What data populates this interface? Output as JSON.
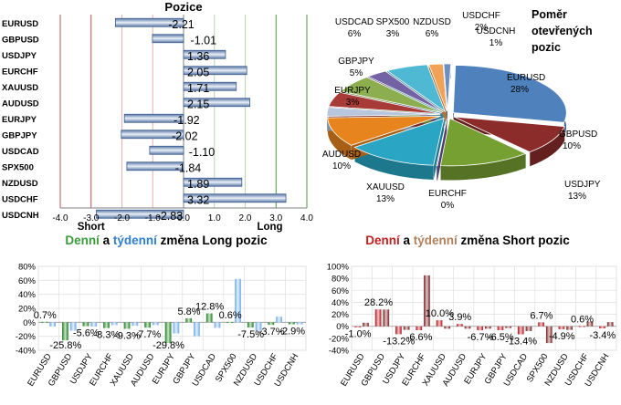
{
  "chart_data": [
    {
      "type": "bar",
      "orientation": "horizontal",
      "title": "Pozice",
      "categories": [
        "EURUSD",
        "GBPUSD",
        "USDJPY",
        "EURCHF",
        "XAUUSD",
        "AUDUSD",
        "EURJPY",
        "GBPJPY",
        "USDCAD",
        "SPX500",
        "NZDUSD",
        "USDCHF",
        "USDCNH"
      ],
      "values": [
        -2.21,
        -1.01,
        1.36,
        2.05,
        1.71,
        2.15,
        -1.92,
        -2.02,
        -1.1,
        -1.84,
        1.89,
        3.32,
        -2.83
      ],
      "value_labels": [
        "-2.21",
        "-1.01",
        "1.36",
        "2.05",
        "1.71",
        "2.15",
        "-1.92",
        "-2.02",
        "-1.10",
        "-1.84",
        "1.89",
        "3.32",
        "-2.83"
      ],
      "xlim": [
        -4,
        4
      ],
      "xticks": [
        "-4.0",
        "-3.0",
        "-2.0",
        "-1.0",
        "0.0",
        "1.0",
        "2.0",
        "3.0",
        "4.0"
      ],
      "annotations": [
        "Short",
        "Long"
      ],
      "colors": {
        "bar": "#7f97bb",
        "short_line": "#c0504d",
        "long_line": "#4a9a3a",
        "axis": "#7f7f7f"
      }
    },
    {
      "type": "pie",
      "title": "Poměr otevřených pozic",
      "labels": [
        "EURUSD",
        "GBPUSD",
        "USDJPY",
        "EURCHF",
        "XAUUSD",
        "AUDUSD",
        "EURJPY",
        "GBPJPY",
        "USDCAD",
        "SPX500",
        "NZDUSD",
        "USDCHF",
        "USDCNH"
      ],
      "values": [
        28,
        10,
        13,
        0,
        13,
        10,
        3,
        5,
        6,
        3,
        6,
        2,
        1
      ],
      "value_labels": [
        "28%",
        "10%",
        "13%",
        "0%",
        "13%",
        "10%",
        "3%",
        "5%",
        "6%",
        "3%",
        "6%",
        "2%",
        "1%"
      ],
      "colors": [
        "#4f81bd",
        "#8b2c2a",
        "#77a033",
        "#6b4f99",
        "#2aa6c4",
        "#e8841e",
        "#b8c7de",
        "#a63b37",
        "#8cae4f",
        "#7363a5",
        "#4fb8d2",
        "#f0a256",
        "#6d8ec3"
      ]
    },
    {
      "type": "bar",
      "title_parts": {
        "p1": "Denní",
        "p2": " a ",
        "p3": "týdenní",
        "p4": " změna Long pozic"
      },
      "categories": [
        "EURUSD",
        "GBPUSD",
        "USDJPY",
        "EURCHF",
        "XAUUSD",
        "AUDUSD",
        "EURJPY",
        "GBPJPY",
        "USDCAD",
        "SPX500",
        "NZDUSD",
        "USDCHF",
        "USDCNH"
      ],
      "series": [
        {
          "name": "Denní",
          "values": [
            0.7,
            -25.8,
            -5.6,
            -8.3,
            -9.3,
            -7.7,
            -29.8,
            5.8,
            12.8,
            0.6,
            -7.5,
            -3.7,
            -2.9
          ],
          "color": "#2e8a34"
        },
        {
          "name": "Týdenní",
          "values": [
            -6,
            -12,
            -6,
            -4,
            -5,
            -4,
            -16,
            -20,
            -8,
            62,
            -12,
            8,
            -3
          ],
          "color": "#8cbcf0"
        }
      ],
      "value_labels": [
        "0.7%",
        "-25.8%",
        "-5.6%",
        "-8.3%",
        "-9.3%",
        "-7.7%",
        "-29.8%",
        "5.8%",
        "12.8%",
        "0.6%",
        "-7.5%",
        "-3.7%",
        "-2.9%"
      ],
      "ylim": [
        -40,
        80
      ],
      "yticks": [
        "-40%",
        "-20%",
        "0%",
        "20%",
        "40%",
        "60%",
        "80%"
      ],
      "colors": {
        "title_p1": "#3a9a3a",
        "title_p3": "#2e7fd6"
      }
    },
    {
      "type": "bar",
      "title_parts": {
        "p1": "Denní",
        "p2": " a ",
        "p3": "týdenní",
        "p4": " změna Short pozic"
      },
      "categories": [
        "EURUSD",
        "GBPUSD",
        "USDJPY",
        "EURCHF",
        "XAUUSD",
        "AUDUSD",
        "EURJPY",
        "GBPJPY",
        "USDCAD",
        "SPX500",
        "NZDUSD",
        "USDCHF",
        "USDCNH"
      ],
      "series": [
        {
          "name": "Denní",
          "values": [
            -1.0,
            28.2,
            -13.2,
            -6.6,
            10.0,
            3.9,
            -6.7,
            -6.5,
            -13.4,
            6.7,
            -4.9,
            0.6,
            -3.4
          ],
          "color": "#c0141a"
        },
        {
          "name": "Týdenní",
          "values": [
            6,
            28,
            -6,
            85,
            -4,
            -4,
            -4,
            -3,
            -8,
            -28,
            -6,
            8,
            7
          ],
          "color": "#8b2b2b"
        }
      ],
      "value_labels": [
        "-1.0%",
        "28.2%",
        "-13.2%",
        "-6.6%",
        "10.0%",
        "3.9%",
        "-6.7%",
        "-6.5%",
        "-13.4%",
        "6.7%",
        "-4.9%",
        "0.6%",
        "-3.4%"
      ],
      "ylim": [
        -40,
        100
      ],
      "yticks": [
        "-40%",
        "-20%",
        "0%",
        "20%",
        "40%",
        "60%",
        "80%",
        "100%"
      ],
      "colors": {
        "title_p1": "#c81e1e",
        "title_p3": "#b0805a"
      }
    }
  ]
}
